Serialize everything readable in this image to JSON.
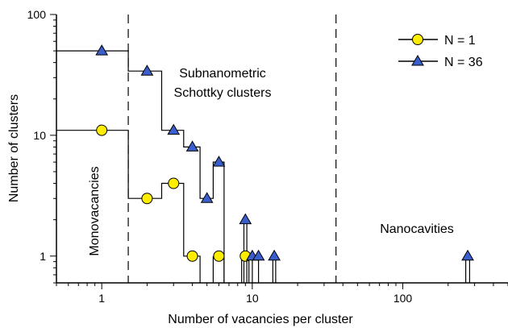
{
  "chart_data": {
    "type": "line",
    "title": "",
    "xlabel": "Number of vacancies per cluster",
    "ylabel": "Number of clusters",
    "x_scale": "log",
    "y_scale": "log",
    "xlim": [
      0.5,
      500
    ],
    "ylim": [
      0.6,
      100
    ],
    "grid": false,
    "legend_position": "top-right",
    "x_ticks": [
      {
        "value": 1,
        "label": "1"
      },
      {
        "value": 10,
        "label": "10"
      },
      {
        "value": 100,
        "label": "100"
      }
    ],
    "y_ticks": [
      {
        "value": 1,
        "label": "1"
      },
      {
        "value": 10,
        "label": "10"
      },
      {
        "value": 100,
        "label": "100"
      }
    ],
    "dividers_x": [
      1.5,
      36
    ],
    "annotations": {
      "monovacancies": "Monovacancies",
      "subnano_line1": "Subnanometric",
      "subnano_line2": "Schottky clusters",
      "nanocavities": "Nanocavities"
    },
    "series": [
      {
        "name": "N = 1",
        "marker": "circle",
        "color": "#ffee00",
        "points": [
          [
            1,
            11
          ],
          [
            2,
            3
          ],
          [
            3,
            4
          ],
          [
            4,
            1
          ],
          [
            6,
            1
          ],
          [
            9,
            1
          ]
        ],
        "steps": [
          [
            0.5,
            11
          ],
          [
            1.5,
            11
          ],
          [
            1.5,
            3
          ],
          [
            2.5,
            3
          ],
          [
            2.5,
            4
          ],
          [
            3.5,
            4
          ],
          [
            3.5,
            1
          ],
          [
            4.5,
            1
          ],
          [
            4.5,
            0.6
          ]
        ],
        "spikes": [
          [
            5.5,
            6.5
          ],
          [
            8.5,
            9.5
          ]
        ]
      },
      {
        "name": "N = 36",
        "marker": "triangle",
        "color": "#3a5fcd",
        "points": [
          [
            1,
            50
          ],
          [
            2,
            34
          ],
          [
            3,
            11
          ],
          [
            4,
            8
          ],
          [
            5,
            3
          ],
          [
            6,
            6
          ],
          [
            9,
            2
          ],
          [
            10,
            1
          ],
          [
            11,
            1
          ],
          [
            14,
            1
          ],
          [
            270,
            1
          ]
        ],
        "steps": [
          [
            0.5,
            50
          ],
          [
            1.5,
            50
          ],
          [
            1.5,
            34
          ],
          [
            2.5,
            34
          ],
          [
            2.5,
            11
          ],
          [
            3.5,
            11
          ],
          [
            3.5,
            8
          ],
          [
            4.5,
            8
          ],
          [
            4.5,
            3
          ],
          [
            5.5,
            3
          ],
          [
            5.5,
            6
          ],
          [
            6.5,
            6
          ],
          [
            6.5,
            0.6
          ]
        ],
        "spikes": [
          [
            8.8,
            9.2
          ],
          [
            13.7,
            14.3
          ],
          [
            262,
            278
          ]
        ]
      }
    ]
  }
}
